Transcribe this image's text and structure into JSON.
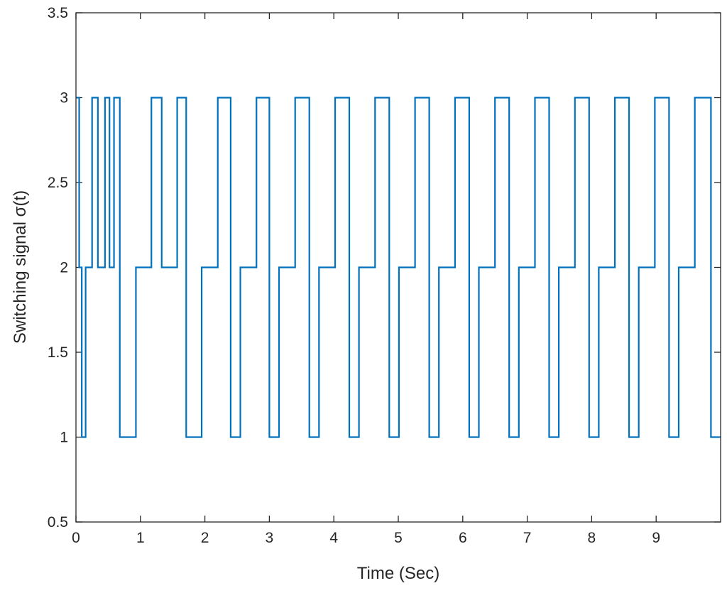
{
  "chart_data": {
    "type": "line",
    "title": "",
    "xlabel": "Time (Sec)",
    "ylabel": "Switching signal σ(t)",
    "xlim": [
      0,
      10
    ],
    "ylim": [
      0.5,
      3.5
    ],
    "xticks": [
      0,
      1,
      2,
      3,
      4,
      5,
      6,
      7,
      8,
      9
    ],
    "xtick_labels": [
      "0",
      "1",
      "2",
      "3",
      "4",
      "5",
      "6",
      "7",
      "8",
      "9"
    ],
    "yticks": [
      0.5,
      1,
      1.5,
      2,
      2.5,
      3,
      3.5
    ],
    "ytick_labels": [
      "0.5",
      "1",
      "1.5",
      "2",
      "2.5",
      "3",
      "3.5"
    ],
    "grid": false,
    "line_color": "#0072BD",
    "series": [
      {
        "step": "post",
        "x": [
          0,
          0.05,
          0.09,
          0.15,
          0.25,
          0.34,
          0.45,
          0.52,
          0.59,
          0.68,
          0.76,
          0.93,
          1.17,
          1.33,
          1.57,
          1.71,
          1.95,
          2.2,
          2.4,
          2.55,
          2.8,
          3.0,
          3.15,
          3.4,
          3.62,
          3.77,
          4.02,
          4.24,
          4.39,
          4.64,
          4.86,
          5.01,
          5.26,
          5.48,
          5.63,
          5.88,
          6.1,
          6.25,
          6.5,
          6.72,
          6.87,
          7.12,
          7.34,
          7.49,
          7.74,
          7.96,
          8.11,
          8.36,
          8.58,
          8.73,
          8.98,
          9.2,
          9.35,
          9.6,
          9.85,
          10.0
        ],
        "y": [
          3,
          2,
          1,
          2,
          3,
          2,
          3,
          2,
          3,
          1,
          1,
          2,
          3,
          2,
          3,
          1,
          2,
          3,
          1,
          2,
          3,
          1,
          2,
          3,
          1,
          2,
          3,
          1,
          2,
          3,
          1,
          2,
          3,
          1,
          2,
          3,
          1,
          2,
          3,
          1,
          2,
          3,
          1,
          2,
          3,
          1,
          2,
          3,
          1,
          2,
          3,
          1,
          2,
          3,
          1,
          1
        ]
      }
    ]
  }
}
